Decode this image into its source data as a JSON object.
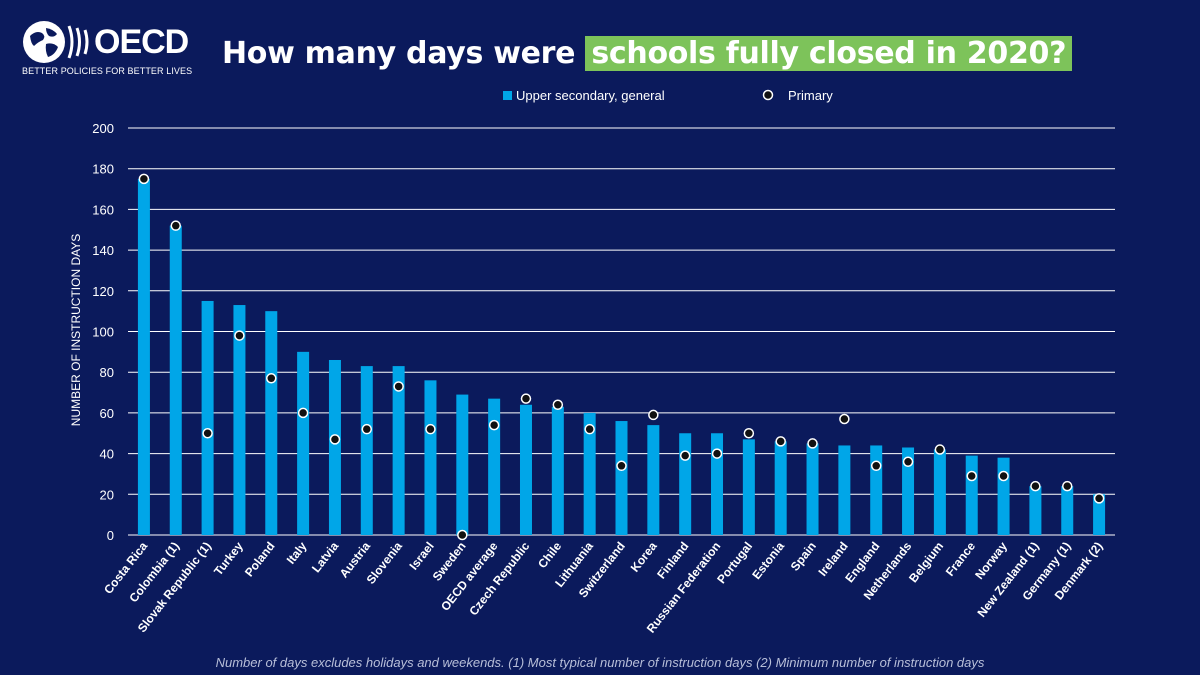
{
  "header": {
    "logo_text": "OECD",
    "logo_tagline": "BETTER POLICIES FOR BETTER LIVES",
    "title_prefix": "How many days were ",
    "title_highlight": "schools fully closed in 2020?"
  },
  "footnote": "Number of days excludes holidays and weekends. (1) Most typical number of instruction days (2) Minimum number of instruction days",
  "colors": {
    "background": "#0b1a5c",
    "bar": "#00a6e8",
    "highlight": "#7dc35a",
    "marker_fill": "#111111",
    "marker_stroke": "#ffffff"
  },
  "chart_data": {
    "type": "bar",
    "ylabel": "NUMBER OF INSTRUCTION DAYS",
    "ylim": [
      0,
      200
    ],
    "yticks": [
      0,
      20,
      40,
      60,
      80,
      100,
      120,
      140,
      160,
      180,
      200
    ],
    "grid": true,
    "legend_position": "top",
    "categories": [
      "Costa Rica",
      "Colombia (1)",
      "Slovak Republic (1)",
      "Turkey",
      "Poland",
      "Italy",
      "Latvia",
      "Austria",
      "Slovenia",
      "Israel",
      "Sweden",
      "OECD average",
      "Czech Republic",
      "Chile",
      "Lithuania",
      "Switzerland",
      "Korea",
      "Finland",
      "Russian Federation",
      "Portugal",
      "Estonia",
      "Spain",
      "Ireland",
      "England",
      "Netherlands",
      "Belgium",
      "France",
      "Norway",
      "New Zealand (1)",
      "Germany (1)",
      "Denmark (2)"
    ],
    "series": [
      {
        "name": "Upper secondary, general",
        "type": "bar",
        "values": [
          175,
          152,
          115,
          113,
          110,
          90,
          86,
          83,
          83,
          76,
          69,
          67,
          64,
          63,
          60,
          56,
          54,
          50,
          50,
          47,
          46,
          45,
          44,
          44,
          43,
          42,
          39,
          38,
          24,
          24,
          20
        ]
      },
      {
        "name": "Primary",
        "type": "scatter",
        "values": [
          175,
          152,
          50,
          98,
          77,
          60,
          47,
          52,
          73,
          52,
          0,
          54,
          67,
          64,
          52,
          34,
          59,
          39,
          40,
          50,
          46,
          45,
          57,
          34,
          36,
          42,
          29,
          29,
          24,
          24,
          18
        ]
      }
    ]
  }
}
